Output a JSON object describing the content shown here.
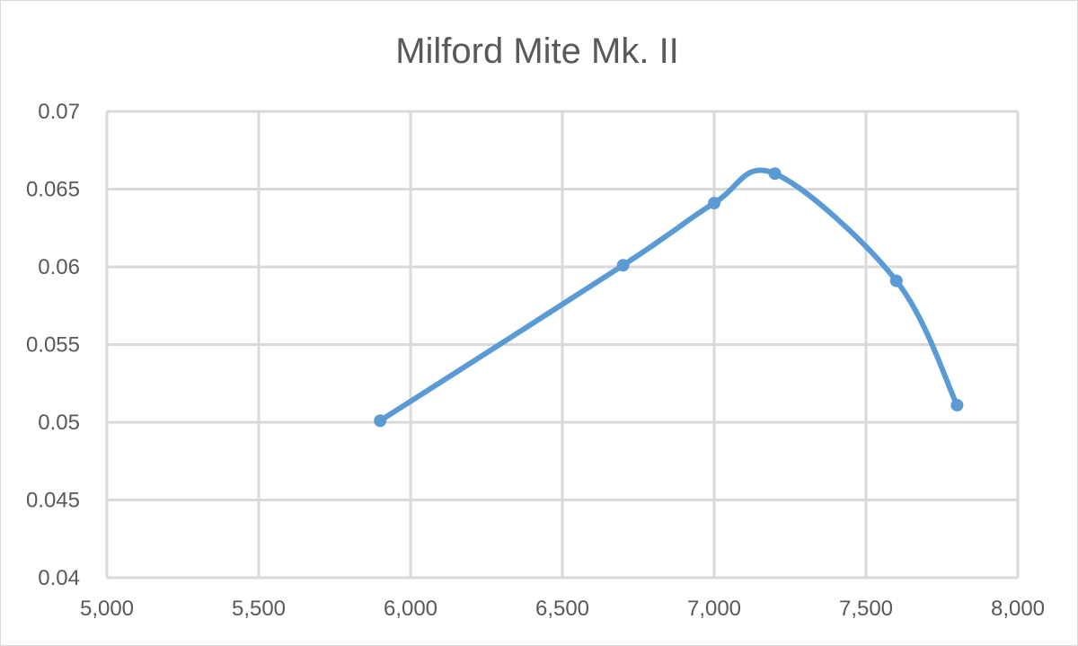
{
  "chart_data": {
    "type": "scatter",
    "title": "Milford Mite Mk. II",
    "xlabel": "",
    "ylabel": "",
    "xlim": [
      5000,
      8000
    ],
    "ylim": [
      0.04,
      0.07
    ],
    "x_ticks": [
      5000,
      5500,
      6000,
      6500,
      7000,
      7500,
      8000
    ],
    "x_tick_labels": [
      "5,000",
      "5,500",
      "6,000",
      "6,500",
      "7,000",
      "7,500",
      "8,000"
    ],
    "y_ticks": [
      0.04,
      0.045,
      0.05,
      0.055,
      0.06,
      0.065,
      0.07
    ],
    "y_tick_labels": [
      "0.04",
      "0.045",
      "0.05",
      "0.055",
      "0.06",
      "0.065",
      "0.07"
    ],
    "grid": true,
    "smooth_line": true,
    "series": [
      {
        "color": "#5b9bd5",
        "x": [
          5900,
          6700,
          7000,
          7200,
          7600,
          7800
        ],
        "y": [
          0.0501,
          0.0601,
          0.0641,
          0.066,
          0.0591,
          0.0511
        ]
      }
    ]
  }
}
